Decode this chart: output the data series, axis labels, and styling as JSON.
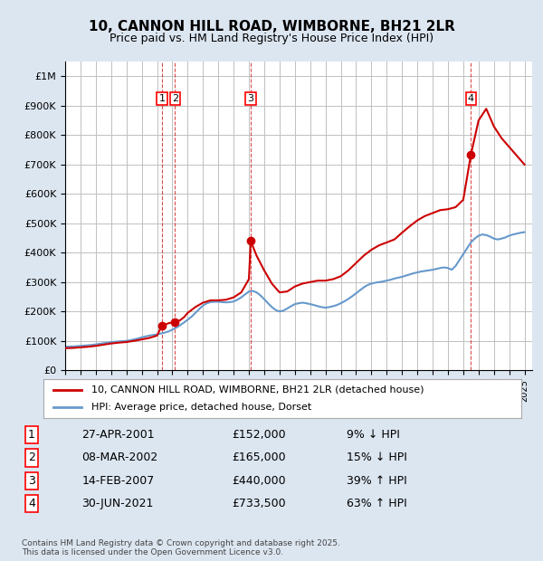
{
  "title": "10, CANNON HILL ROAD, WIMBORNE, BH21 2LR",
  "subtitle": "Price paid vs. HM Land Registry's House Price Index (HPI)",
  "legend_line1": "10, CANNON HILL ROAD, WIMBORNE, BH21 2LR (detached house)",
  "legend_line2": "HPI: Average price, detached house, Dorset",
  "footer_line1": "Contains HM Land Registry data © Crown copyright and database right 2025.",
  "footer_line2": "This data is licensed under the Open Government Licence v3.0.",
  "sale_color": "#cc0000",
  "hpi_color": "#6699cc",
  "background_color": "#dce6f1",
  "plot_bg_color": "#ffffff",
  "grid_color": "#c0c0c0",
  "ylim": [
    0,
    1050000
  ],
  "yticks": [
    0,
    100000,
    200000,
    300000,
    400000,
    500000,
    600000,
    700000,
    800000,
    900000,
    1000000
  ],
  "ytick_labels": [
    "£0",
    "£100K",
    "£200K",
    "£300K",
    "£400K",
    "£500K",
    "£600K",
    "£700K",
    "£800K",
    "£900K",
    "£1M"
  ],
  "sales": [
    {
      "year": 2001.32,
      "price": 152000,
      "label": "1"
    },
    {
      "year": 2002.18,
      "price": 165000,
      "label": "2"
    },
    {
      "year": 2007.12,
      "price": 440000,
      "label": "3"
    },
    {
      "year": 2021.5,
      "price": 733500,
      "label": "4"
    }
  ],
  "sale_table": [
    {
      "num": "1",
      "date": "27-APR-2001",
      "price": "£152,000",
      "hpi": "9% ↓ HPI"
    },
    {
      "num": "2",
      "date": "08-MAR-2002",
      "price": "£165,000",
      "hpi": "15% ↓ HPI"
    },
    {
      "num": "3",
      "date": "14-FEB-2007",
      "price": "£440,000",
      "hpi": "39% ↑ HPI"
    },
    {
      "num": "4",
      "date": "30-JUN-2021",
      "price": "£733,500",
      "hpi": "63% ↑ HPI"
    }
  ],
  "hpi_data": {
    "years": [
      1995,
      1995.25,
      1995.5,
      1995.75,
      1996,
      1996.25,
      1996.5,
      1996.75,
      1997,
      1997.25,
      1997.5,
      1997.75,
      1998,
      1998.25,
      1998.5,
      1998.75,
      1999,
      1999.25,
      1999.5,
      1999.75,
      2000,
      2000.25,
      2000.5,
      2000.75,
      2001,
      2001.25,
      2001.5,
      2001.75,
      2002,
      2002.25,
      2002.5,
      2002.75,
      2003,
      2003.25,
      2003.5,
      2003.75,
      2004,
      2004.25,
      2004.5,
      2004.75,
      2005,
      2005.25,
      2005.5,
      2005.75,
      2006,
      2006.25,
      2006.5,
      2006.75,
      2007,
      2007.25,
      2007.5,
      2007.75,
      2008,
      2008.25,
      2008.5,
      2008.75,
      2009,
      2009.25,
      2009.5,
      2009.75,
      2010,
      2010.25,
      2010.5,
      2010.75,
      2011,
      2011.25,
      2011.5,
      2011.75,
      2012,
      2012.25,
      2012.5,
      2012.75,
      2013,
      2013.25,
      2013.5,
      2013.75,
      2014,
      2014.25,
      2014.5,
      2014.75,
      2015,
      2015.25,
      2015.5,
      2015.75,
      2016,
      2016.25,
      2016.5,
      2016.75,
      2017,
      2017.25,
      2017.5,
      2017.75,
      2018,
      2018.25,
      2018.5,
      2018.75,
      2019,
      2019.25,
      2019.5,
      2019.75,
      2020,
      2020.25,
      2020.5,
      2020.75,
      2021,
      2021.25,
      2021.5,
      2021.75,
      2022,
      2022.25,
      2022.5,
      2022.75,
      2023,
      2023.25,
      2023.5,
      2023.75,
      2024,
      2024.25,
      2024.5,
      2024.75,
      2025
    ],
    "values": [
      80000,
      80500,
      81000,
      82000,
      83000,
      84000,
      85000,
      86000,
      88000,
      90000,
      92000,
      94000,
      96000,
      97000,
      98000,
      99000,
      100000,
      102000,
      105000,
      108000,
      112000,
      115000,
      118000,
      120000,
      122000,
      125000,
      128000,
      132000,
      138000,
      145000,
      153000,
      162000,
      172000,
      182000,
      195000,
      208000,
      220000,
      228000,
      232000,
      233000,
      233000,
      232000,
      231000,
      232000,
      234000,
      240000,
      248000,
      258000,
      268000,
      270000,
      265000,
      255000,
      242000,
      228000,
      215000,
      205000,
      200000,
      203000,
      210000,
      218000,
      225000,
      228000,
      230000,
      228000,
      225000,
      222000,
      218000,
      215000,
      213000,
      215000,
      218000,
      222000,
      228000,
      235000,
      243000,
      252000,
      262000,
      272000,
      282000,
      290000,
      295000,
      298000,
      300000,
      302000,
      305000,
      308000,
      312000,
      315000,
      318000,
      322000,
      326000,
      330000,
      333000,
      336000,
      338000,
      340000,
      342000,
      345000,
      348000,
      350000,
      348000,
      342000,
      355000,
      375000,
      395000,
      415000,
      435000,
      448000,
      458000,
      462000,
      460000,
      455000,
      448000,
      445000,
      448000,
      452000,
      458000,
      462000,
      465000,
      468000,
      470000
    ]
  },
  "property_data": {
    "years": [
      1995,
      1995.5,
      1996,
      1996.5,
      1997,
      1997.5,
      1998,
      1998.5,
      1999,
      1999.5,
      2000,
      2000.5,
      2001.0,
      2001.32,
      2001.32,
      2001.5,
      2001.75,
      2002.0,
      2002.18,
      2002.18,
      2002.5,
      2002.75,
      2003,
      2003.5,
      2004,
      2004.5,
      2005,
      2005.5,
      2006,
      2006.5,
      2007.0,
      2007.12,
      2007.12,
      2007.5,
      2008,
      2008.5,
      2009,
      2009.5,
      2010,
      2010.5,
      2011,
      2011.5,
      2012,
      2012.5,
      2013,
      2013.5,
      2014,
      2014.5,
      2015,
      2015.5,
      2016,
      2016.5,
      2017,
      2017.5,
      2018,
      2018.5,
      2019,
      2019.5,
      2020,
      2020.5,
      2021.0,
      2021.5,
      2021.5,
      2022.0,
      2022.5,
      2023.0,
      2023.5,
      2024.0,
      2024.5,
      2025
    ],
    "values": [
      75000,
      76000,
      78000,
      80000,
      83000,
      87000,
      91000,
      94000,
      96000,
      100000,
      105000,
      110000,
      118000,
      152000,
      152000,
      155000,
      160000,
      163000,
      165000,
      165000,
      170000,
      180000,
      195000,
      215000,
      230000,
      238000,
      238000,
      240000,
      248000,
      265000,
      310000,
      440000,
      440000,
      390000,
      340000,
      295000,
      265000,
      268000,
      285000,
      295000,
      300000,
      305000,
      305000,
      310000,
      320000,
      340000,
      365000,
      390000,
      410000,
      425000,
      435000,
      445000,
      468000,
      490000,
      510000,
      525000,
      535000,
      545000,
      548000,
      555000,
      580000,
      733500,
      733500,
      850000,
      890000,
      830000,
      790000,
      760000,
      730000,
      700000
    ]
  }
}
